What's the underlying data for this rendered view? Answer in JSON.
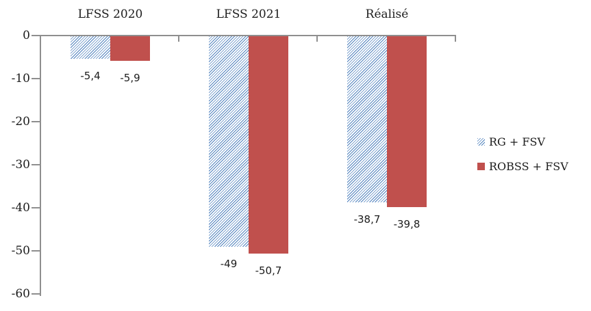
{
  "chart_data": {
    "type": "bar",
    "title": "",
    "categories": [
      "LFSS 2020",
      "LFSS 2021",
      "Réalisé"
    ],
    "series": [
      {
        "name": "RG + FSV",
        "style": "hatched",
        "color": "#4f81bd",
        "values": [
          -5.4,
          -49,
          -38.7
        ],
        "value_labels": [
          "-5,4",
          "-49",
          "-38,7"
        ]
      },
      {
        "name": "ROBSS + FSV",
        "style": "solid",
        "color": "#c0504d",
        "values": [
          -5.9,
          -50.7,
          -39.8
        ],
        "value_labels": [
          "-5,9",
          "-50,7",
          "-39,8"
        ]
      }
    ],
    "y_axis": {
      "tick_labels": [
        "0",
        "-10",
        "-20",
        "-30",
        "-40",
        "-50",
        "-60"
      ],
      "tick_values": [
        0,
        -10,
        -20,
        -30,
        -40,
        -50,
        -60
      ],
      "range": [
        0,
        -60
      ]
    },
    "legend": {
      "position": "right",
      "entries": [
        "RG + FSV",
        "ROBSS + FSV"
      ]
    },
    "grid": false,
    "axis_color": "#8e8e8e",
    "text_color": "#1c1c1c"
  }
}
